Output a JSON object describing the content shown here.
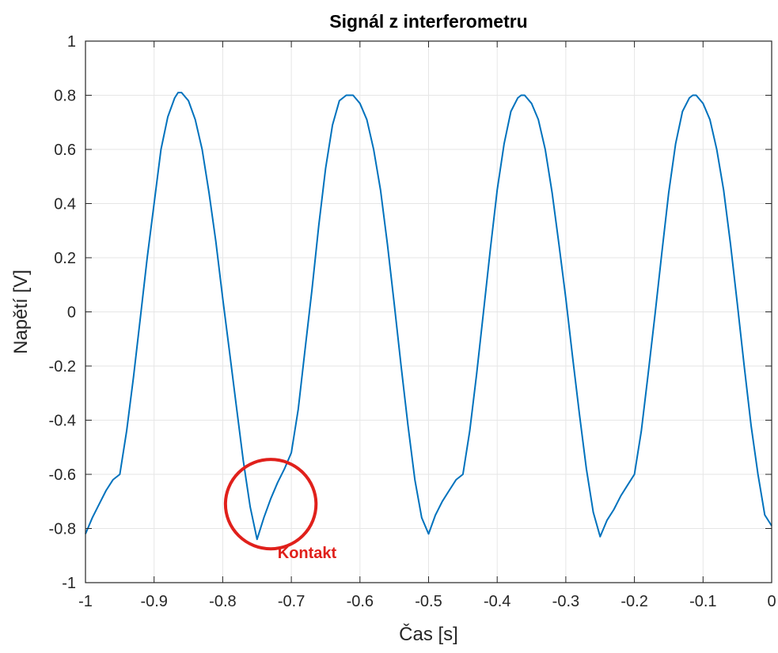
{
  "colors": {
    "line": "#0072BD",
    "grid": "#e6e6e6",
    "axis": "#262626",
    "annotation": "#e0201b"
  },
  "chart_data": {
    "type": "line",
    "title": "Signál z interferometru",
    "xlabel": "Čas [s]",
    "ylabel": "Napětí [V]",
    "xlim": [
      -1,
      0
    ],
    "ylim": [
      -1,
      1
    ],
    "xticks": [
      -1,
      -0.9,
      -0.8,
      -0.7,
      -0.6,
      -0.5,
      -0.4,
      -0.3,
      -0.2,
      -0.1,
      0
    ],
    "xtick_labels": [
      "-1",
      "-0.9",
      "-0.8",
      "-0.7",
      "-0.6",
      "-0.5",
      "-0.4",
      "-0.3",
      "-0.2",
      "-0.1",
      "0"
    ],
    "yticks": [
      -1,
      -0.8,
      -0.6,
      -0.4,
      -0.2,
      0,
      0.2,
      0.4,
      0.6,
      0.8,
      1
    ],
    "ytick_labels": [
      "-1",
      "-0.8",
      "-0.6",
      "-0.4",
      "-0.2",
      "0",
      "0.2",
      "0.4",
      "0.6",
      "0.8",
      "1"
    ],
    "grid": true,
    "series": [
      {
        "x": [
          -1,
          -0.99,
          -0.98,
          -0.97,
          -0.96,
          -0.95,
          -0.94,
          -0.93,
          -0.92,
          -0.91,
          -0.9,
          -0.89,
          -0.88,
          -0.87,
          -0.865,
          -0.86,
          -0.85,
          -0.84,
          -0.83,
          -0.82,
          -0.81,
          -0.8,
          -0.79,
          -0.78,
          -0.77,
          -0.76,
          -0.75,
          -0.74,
          -0.73,
          -0.72,
          -0.71,
          -0.7,
          -0.69,
          -0.68,
          -0.67,
          -0.66,
          -0.65,
          -0.64,
          -0.63,
          -0.62,
          -0.615,
          -0.61,
          -0.6,
          -0.59,
          -0.58,
          -0.57,
          -0.56,
          -0.55,
          -0.54,
          -0.53,
          -0.52,
          -0.51,
          -0.5,
          -0.49,
          -0.48,
          -0.47,
          -0.46,
          -0.45,
          -0.44,
          -0.43,
          -0.42,
          -0.41,
          -0.4,
          -0.39,
          -0.38,
          -0.37,
          -0.365,
          -0.36,
          -0.35,
          -0.34,
          -0.33,
          -0.32,
          -0.31,
          -0.3,
          -0.29,
          -0.28,
          -0.27,
          -0.26,
          -0.25,
          -0.24,
          -0.23,
          -0.22,
          -0.21,
          -0.2,
          -0.19,
          -0.18,
          -0.17,
          -0.16,
          -0.15,
          -0.14,
          -0.13,
          -0.12,
          -0.115,
          -0.11,
          -0.1,
          -0.09,
          -0.08,
          -0.07,
          -0.06,
          -0.05,
          -0.04,
          -0.03,
          -0.02,
          -0.01,
          0
        ],
        "y": [
          -0.82,
          -0.76,
          -0.71,
          -0.66,
          -0.62,
          -0.6,
          -0.44,
          -0.24,
          -0.02,
          0.2,
          0.4,
          0.6,
          0.72,
          0.79,
          0.81,
          0.81,
          0.78,
          0.71,
          0.6,
          0.44,
          0.26,
          0.05,
          -0.15,
          -0.35,
          -0.55,
          -0.72,
          -0.84,
          -0.76,
          -0.69,
          -0.63,
          -0.58,
          -0.52,
          -0.36,
          -0.14,
          0.08,
          0.32,
          0.53,
          0.69,
          0.78,
          0.8,
          0.8,
          0.8,
          0.77,
          0.71,
          0.6,
          0.45,
          0.25,
          0.03,
          -0.2,
          -0.42,
          -0.62,
          -0.76,
          -0.82,
          -0.75,
          -0.7,
          -0.66,
          -0.62,
          -0.6,
          -0.44,
          -0.23,
          0.0,
          0.23,
          0.45,
          0.62,
          0.74,
          0.79,
          0.8,
          0.8,
          0.77,
          0.71,
          0.6,
          0.44,
          0.25,
          0.05,
          -0.17,
          -0.38,
          -0.58,
          -0.74,
          -0.83,
          -0.77,
          -0.73,
          -0.68,
          -0.64,
          -0.6,
          -0.44,
          -0.23,
          -0.01,
          0.22,
          0.44,
          0.62,
          0.74,
          0.79,
          0.8,
          0.8,
          0.77,
          0.71,
          0.6,
          0.45,
          0.25,
          0.03,
          -0.2,
          -0.42,
          -0.6,
          -0.75,
          -0.79
        ]
      }
    ],
    "annotations": [
      {
        "type": "circle",
        "cx": -0.73,
        "cy": -0.71,
        "rx": 0.066,
        "ry": 0.165
      },
      {
        "type": "text",
        "text": "Kontakt",
        "x": -0.72,
        "y": -0.91
      }
    ]
  }
}
